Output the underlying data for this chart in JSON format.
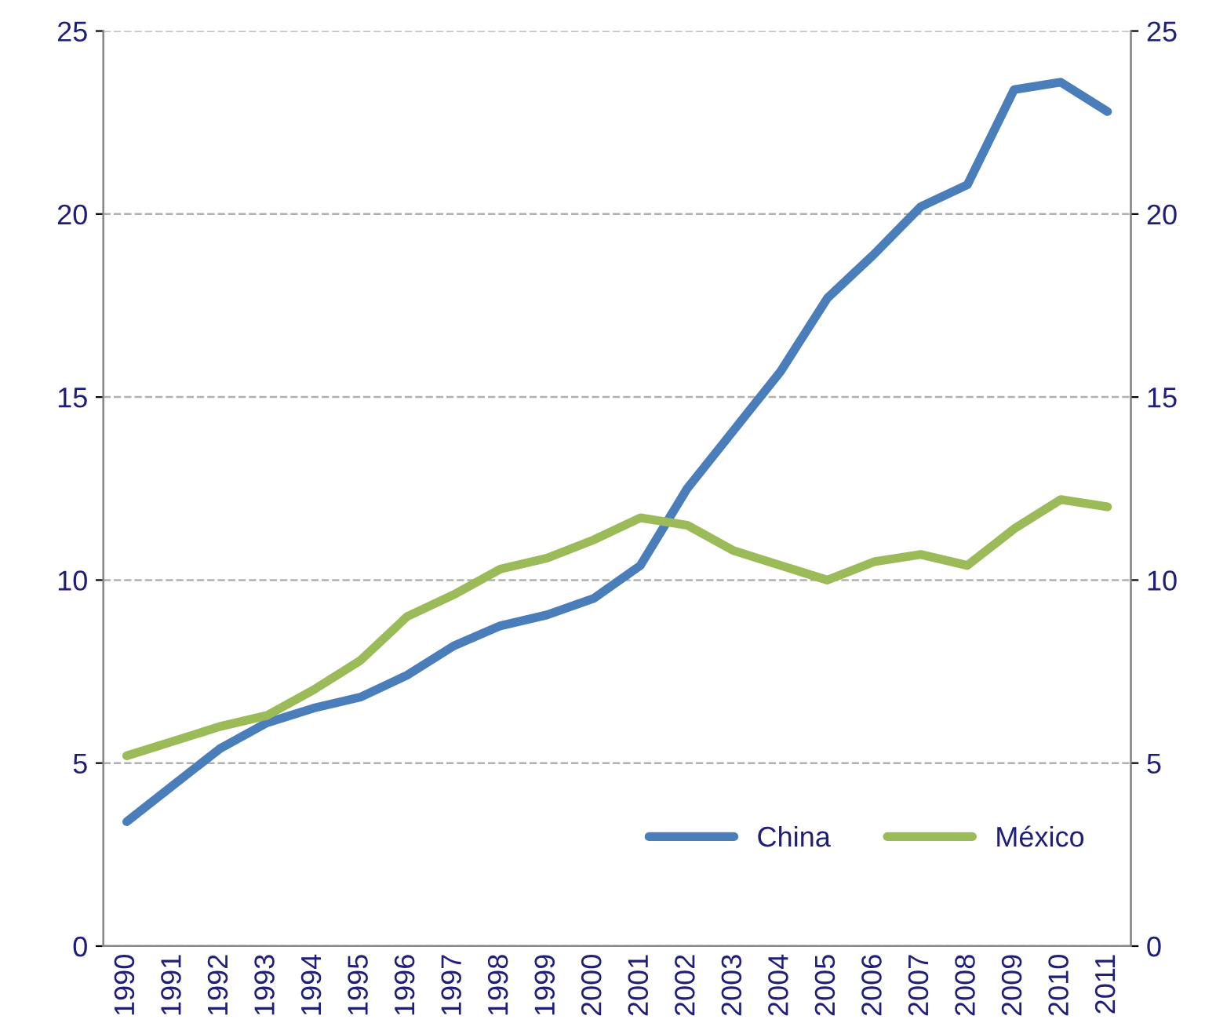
{
  "chart_data": {
    "type": "line",
    "categories": [
      "1990",
      "1991",
      "1992",
      "1993",
      "1994",
      "1995",
      "1996",
      "1997",
      "1998",
      "1999",
      "2000",
      "2001",
      "2002",
      "2003",
      "2004",
      "2005",
      "2006",
      "2007",
      "2008",
      "2009",
      "2010",
      "2011"
    ],
    "series": [
      {
        "name": "China",
        "color": "#4a7ebb",
        "values": [
          3.4,
          4.4,
          5.4,
          6.1,
          6.5,
          6.8,
          7.4,
          8.2,
          8.75,
          9.05,
          9.5,
          10.4,
          12.5,
          14.1,
          15.7,
          17.7,
          18.9,
          20.2,
          20.8,
          23.4,
          23.6,
          22.8
        ]
      },
      {
        "name": "México",
        "color": "#9bbb59",
        "values": [
          5.2,
          5.6,
          6.0,
          6.3,
          7.0,
          7.8,
          9.0,
          9.6,
          10.3,
          10.6,
          11.1,
          11.7,
          11.5,
          10.8,
          10.4,
          10.0,
          10.5,
          10.7,
          10.4,
          11.4,
          12.2,
          12.0
        ]
      }
    ],
    "ylim": [
      0,
      25
    ],
    "yticks": [
      0,
      5,
      10,
      15,
      20,
      25
    ],
    "y2lim": [
      0,
      25
    ],
    "y2ticks": [
      0,
      5,
      10,
      15,
      20,
      25
    ],
    "grid": "y",
    "legend": "bottom right",
    "line_style": "solid",
    "marker": "none"
  }
}
